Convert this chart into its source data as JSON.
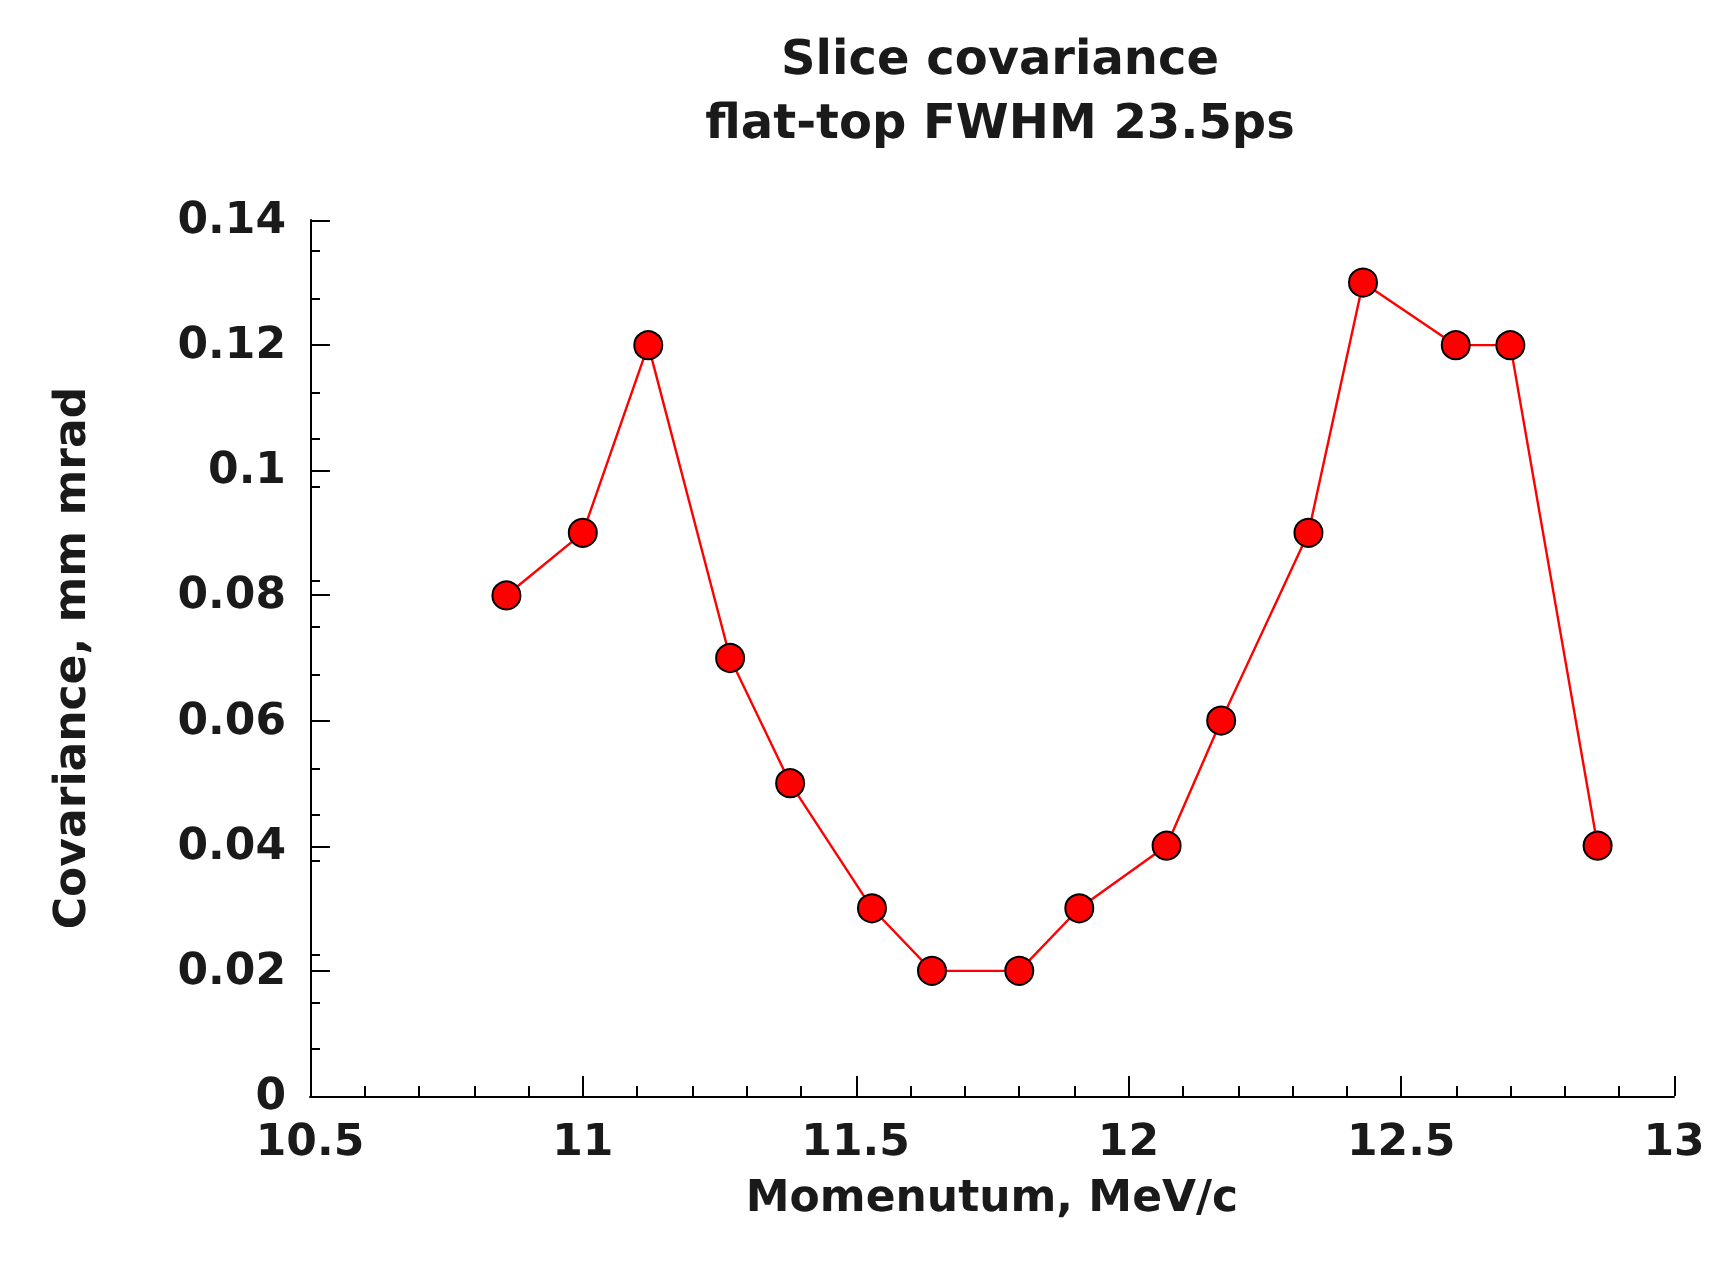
{
  "chart_data": {
    "type": "line",
    "title": "Slice covariance\nflat-top FWHM 23.5ps",
    "xlabel": "Momenutum, MeV/c",
    "ylabel": "Covariance, mm mrad",
    "x": [
      10.86,
      11.0,
      11.12,
      11.27,
      11.38,
      11.53,
      11.64,
      11.8,
      11.91,
      12.07,
      12.17,
      12.33,
      12.43,
      12.6,
      12.7,
      12.86
    ],
    "series": [
      {
        "color": "#ff0000",
        "values": [
          0.08,
          0.09,
          0.12,
          0.07,
          0.05,
          0.03,
          0.02,
          0.02,
          0.03,
          0.04,
          0.06,
          0.09,
          0.13,
          0.12,
          0.12,
          0.04
        ]
      }
    ],
    "xlim": [
      10.5,
      13
    ],
    "xticks": [
      10.5,
      11,
      11.5,
      12,
      12.5,
      13
    ],
    "ylim": [
      0,
      0.14
    ],
    "yticks": [
      0,
      0.02,
      0.04,
      0.06,
      0.08,
      0.1,
      0.12,
      0.14
    ],
    "grid": false,
    "marker": "circle",
    "line_style": "solid"
  }
}
